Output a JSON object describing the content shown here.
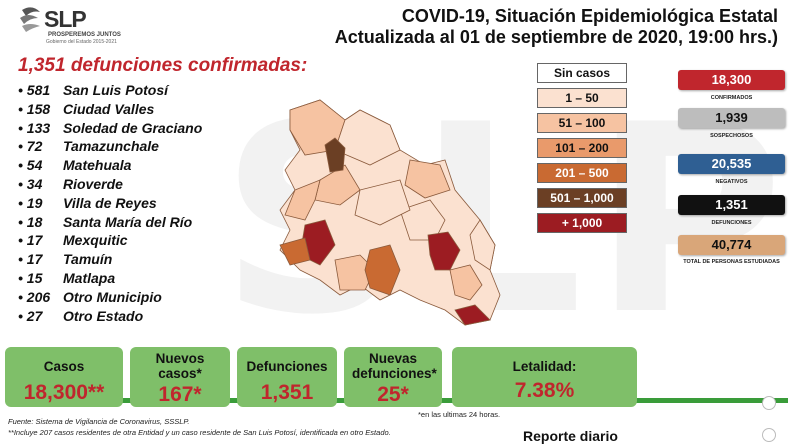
{
  "logo": {
    "name": "SLP",
    "tagline": "PROSPEREMOS JUNTOS",
    "sub": "Gobierno del Estado 2015-2021"
  },
  "header": {
    "line1": "COVID-19, Situación Epidemiológica Estatal",
    "line2": "Actualizada al 01 de septiembre de 2020, 19:00 hrs.)"
  },
  "deaths": {
    "title": "1,351 defunciones confirmadas:",
    "items": [
      {
        "num": "581",
        "name": "San Luis Potosí"
      },
      {
        "num": "158",
        "name": "Ciudad Valles"
      },
      {
        "num": "133",
        "name": "Soledad de Graciano"
      },
      {
        "num": "72",
        "name": "Tamazunchale"
      },
      {
        "num": "54",
        "name": "Matehuala"
      },
      {
        "num": "34",
        "name": "Rioverde"
      },
      {
        "num": "19",
        "name": "Villa de Reyes"
      },
      {
        "num": "18",
        "name": "Santa María del Río"
      },
      {
        "num": "17",
        "name": "Mexquitic"
      },
      {
        "num": "17",
        "name": "Tamuín"
      },
      {
        "num": "15",
        "name": "Matlapa"
      },
      {
        "num": "206",
        "name": "Otro Municipio"
      },
      {
        "num": "27",
        "name": "Otro Estado"
      }
    ]
  },
  "legend": {
    "items": [
      {
        "label": "Sin casos",
        "bg": "#ffffff",
        "fg": "#111111"
      },
      {
        "label": "1 – 50",
        "bg": "#fbe1d0",
        "fg": "#111111"
      },
      {
        "label": "51 – 100",
        "bg": "#f6c3a2",
        "fg": "#111111"
      },
      {
        "label": "101 – 200",
        "bg": "#e99a6b",
        "fg": "#111111"
      },
      {
        "label": "201 – 500",
        "bg": "#c96a32",
        "fg": "#ffffff"
      },
      {
        "label": "501 – 1,000",
        "bg": "#6b3f24",
        "fg": "#ffffff"
      },
      {
        "label": "+ 1,000",
        "bg": "#9c1c22",
        "fg": "#ffffff"
      }
    ]
  },
  "stats": [
    {
      "value": "18,300",
      "label": "CONFIRMADOS",
      "bg": "#c0262d",
      "fg": "#ffffff"
    },
    {
      "value": "1,939",
      "label": "SOSPECHOSOS",
      "bg": "#bdbdbd",
      "fg": "#111111"
    },
    {
      "value": "20,535",
      "label": "NEGATIVOS",
      "bg": "#2f5f93",
      "fg": "#ffffff"
    },
    {
      "value": "1,351",
      "label": "DEFUNCIONES",
      "bg": "#111111",
      "fg": "#ffffff"
    },
    {
      "value": "40,774",
      "label": "TOTAL DE PERSONAS ESTUDIADAS",
      "bg": "#d9a679",
      "fg": "#111111"
    }
  ],
  "summary": {
    "casos_label": "Casos",
    "casos_value": "18,300**",
    "nuevos_label": "Nuevos casos*",
    "nuevos_value": "167*",
    "def_label": "Defunciones",
    "def_value": "1,351",
    "nuevas_def_label": "Nuevas defunciones*",
    "nuevas_def_value": "25*",
    "letalidad_label": "Letalidad:",
    "letalidad_value": "7.38%"
  },
  "footer": {
    "note": "*en las ultimas 24 horas.",
    "source": "Fuente: Sistema de Vigilancia de Coronavirus, SSSLP.",
    "remark": "**Incluye 207 casos residentes de otra Entidad y un caso residente de San Luis Potosí, identificada en otro Estado.",
    "report": "Reporte diario"
  },
  "watermark": "SLP"
}
